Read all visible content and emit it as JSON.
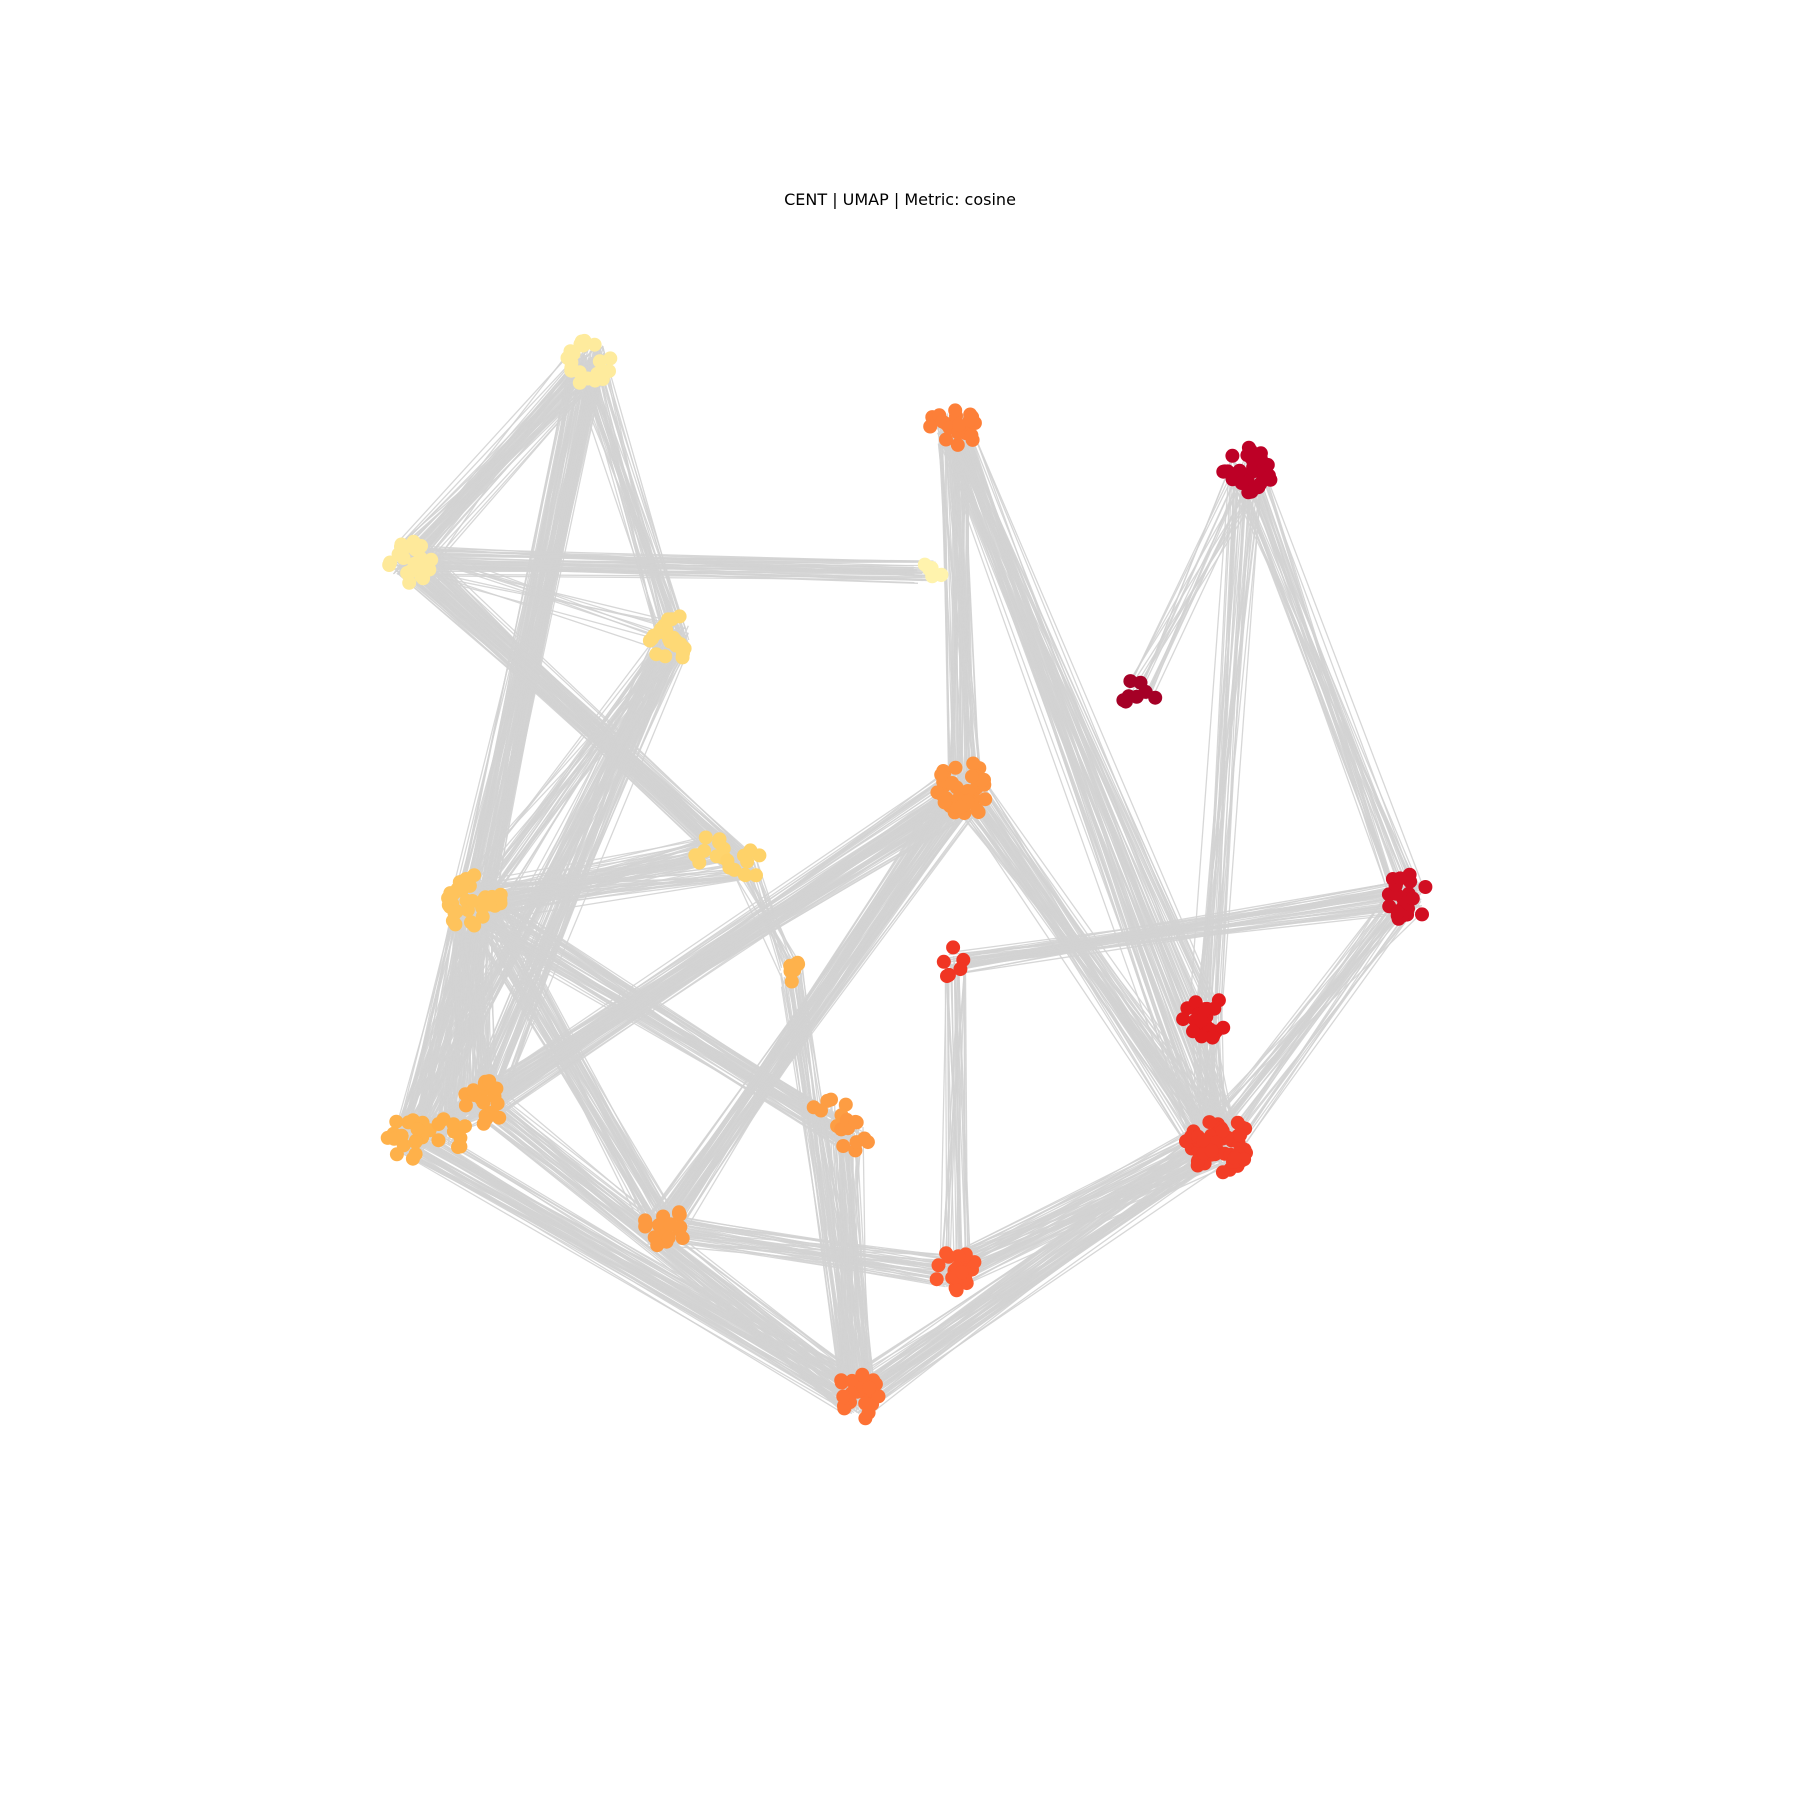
{
  "chart_data": {
    "type": "scatter",
    "title": "CENT | UMAP | Metric: cosine",
    "axes_visible": false,
    "grid": false,
    "legend": "none",
    "xlim": [
      0,
      100
    ],
    "ylim": [
      0,
      100
    ],
    "edge_color": "#d3d3d3",
    "colormap": "YlOrRd",
    "clusters": [
      {
        "id": "c1",
        "x": 32.5,
        "y": 95.0,
        "size": 22,
        "color": "#feeb9d"
      },
      {
        "id": "c2",
        "x": 66.5,
        "y": 77.5,
        "size": 6,
        "color": "#fff3ad"
      },
      {
        "id": "c3",
        "x": 14.5,
        "y": 78.5,
        "size": 22,
        "color": "#fee99a"
      },
      {
        "id": "c4",
        "x": 41.0,
        "y": 72.0,
        "size": 22,
        "color": "#fed976"
      },
      {
        "id": "c5",
        "x": 45.0,
        "y": 54.5,
        "size": 10,
        "color": "#fed46d"
      },
      {
        "id": "c6",
        "x": 48.3,
        "y": 53.0,
        "size": 10,
        "color": "#fed269"
      },
      {
        "id": "c7",
        "x": 21.0,
        "y": 50.0,
        "size": 40,
        "color": "#fec35c"
      },
      {
        "id": "c8",
        "x": 53.0,
        "y": 44.0,
        "size": 6,
        "color": "#feb24c"
      },
      {
        "id": "c9",
        "x": 14.5,
        "y": 30.5,
        "size": 18,
        "color": "#feb14a"
      },
      {
        "id": "c10",
        "x": 18.5,
        "y": 31.0,
        "size": 10,
        "color": "#feae47"
      },
      {
        "id": "c11",
        "x": 22.0,
        "y": 33.5,
        "size": 18,
        "color": "#fea845"
      },
      {
        "id": "c12",
        "x": 57.0,
        "y": 32.5,
        "size": 10,
        "color": "#fd9d43"
      },
      {
        "id": "c13",
        "x": 59.0,
        "y": 30.5,
        "size": 10,
        "color": "#fd9740"
      },
      {
        "id": "c14",
        "x": 40.0,
        "y": 23.0,
        "size": 20,
        "color": "#fd9a41"
      },
      {
        "id": "c15",
        "x": 70.5,
        "y": 59.5,
        "size": 40,
        "color": "#fd933e"
      },
      {
        "id": "c16",
        "x": 69.3,
        "y": 89.5,
        "size": 22,
        "color": "#fd7f38"
      },
      {
        "id": "c17",
        "x": 59.7,
        "y": 9.0,
        "size": 24,
        "color": "#fd7134"
      },
      {
        "id": "c18",
        "x": 69.5,
        "y": 19.5,
        "size": 22,
        "color": "#fc5b2e"
      },
      {
        "id": "c19",
        "x": 69.5,
        "y": 45.0,
        "size": 6,
        "color": "#f03523"
      },
      {
        "id": "c20",
        "x": 96.0,
        "y": 30.0,
        "size": 55,
        "color": "#f23d26"
      },
      {
        "id": "c21",
        "x": 94.8,
        "y": 40.5,
        "size": 22,
        "color": "#e31a1c"
      },
      {
        "id": "c22",
        "x": 115.0,
        "y": 50.5,
        "size": 22,
        "color": "#d10e22"
      },
      {
        "id": "c23",
        "x": 99.0,
        "y": 86.0,
        "size": 28,
        "color": "#bd0026"
      },
      {
        "id": "c24",
        "x": 88.0,
        "y": 67.5,
        "size": 8,
        "color": "#a50026"
      }
    ],
    "edges": [
      [
        "c1",
        "c3",
        60
      ],
      [
        "c1",
        "c7",
        90
      ],
      [
        "c1",
        "c4",
        40
      ],
      [
        "c3",
        "c2",
        40
      ],
      [
        "c3",
        "c6",
        70
      ],
      [
        "c4",
        "c7",
        30
      ],
      [
        "c4",
        "c11",
        50
      ],
      [
        "c4",
        "c9",
        40
      ],
      [
        "c7",
        "c5",
        40
      ],
      [
        "c7",
        "c6",
        30
      ],
      [
        "c7",
        "c9",
        60
      ],
      [
        "c7",
        "c10",
        50
      ],
      [
        "c7",
        "c11",
        50
      ],
      [
        "c7",
        "c14",
        50
      ],
      [
        "c7",
        "c13",
        60
      ],
      [
        "c6",
        "c8",
        20
      ],
      [
        "c8",
        "c17",
        30
      ],
      [
        "c11",
        "c15",
        80
      ],
      [
        "c9",
        "c17",
        60
      ],
      [
        "c11",
        "c17",
        50
      ],
      [
        "c14",
        "c15",
        70
      ],
      [
        "c14",
        "c18",
        40
      ],
      [
        "c12",
        "c17",
        30
      ],
      [
        "c13",
        "c17",
        30
      ],
      [
        "c17",
        "c20",
        60
      ],
      [
        "c18",
        "c20",
        60
      ],
      [
        "c18",
        "c19",
        30
      ],
      [
        "c16",
        "c15",
        60
      ],
      [
        "c16",
        "c20",
        50
      ],
      [
        "c15",
        "c20",
        60
      ],
      [
        "c19",
        "c22",
        40
      ],
      [
        "c21",
        "c20",
        50
      ],
      [
        "c21",
        "c16",
        30
      ],
      [
        "c23",
        "c21",
        30
      ],
      [
        "c23",
        "c24",
        20
      ],
      [
        "c23",
        "c22",
        40
      ],
      [
        "c22",
        "c20",
        40
      ],
      [
        "c9",
        "c11",
        40
      ],
      [
        "c10",
        "c11",
        20
      ],
      [
        "c3",
        "c4",
        10
      ]
    ]
  }
}
